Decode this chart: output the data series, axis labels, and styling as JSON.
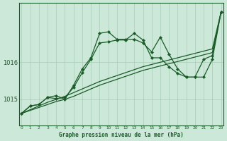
{
  "title": "Graphe pression niveau de la mer (hPa)",
  "background_color": "#cce8d8",
  "grid_color": "#a8ccb8",
  "line_color": "#1a5c28",
  "x_labels": [
    "0",
    "1",
    "2",
    "3",
    "4",
    "5",
    "6",
    "7",
    "8",
    "9",
    "10",
    "11",
    "12",
    "13",
    "14",
    "15",
    "16",
    "17",
    "18",
    "19",
    "20",
    "21",
    "22",
    "23"
  ],
  "y_ticks": [
    1015,
    1016
  ],
  "ylim": [
    1014.3,
    1017.6
  ],
  "xlim": [
    -0.3,
    23.3
  ],
  "trend1": [
    1014.62,
    1014.72,
    1014.82,
    1014.92,
    1015.0,
    1015.08,
    1015.18,
    1015.28,
    1015.38,
    1015.48,
    1015.56,
    1015.64,
    1015.72,
    1015.8,
    1015.88,
    1015.94,
    1016.0,
    1016.06,
    1016.12,
    1016.18,
    1016.24,
    1016.3,
    1016.36,
    1017.35
  ],
  "trend2": [
    1014.62,
    1014.7,
    1014.78,
    1014.86,
    1014.94,
    1015.0,
    1015.08,
    1015.18,
    1015.28,
    1015.38,
    1015.46,
    1015.54,
    1015.62,
    1015.7,
    1015.78,
    1015.84,
    1015.9,
    1015.96,
    1016.02,
    1016.08,
    1016.14,
    1016.2,
    1016.26,
    1017.35
  ],
  "jagged1": [
    1014.62,
    1014.82,
    1014.86,
    1015.05,
    1015.02,
    1015.05,
    1015.32,
    1015.72,
    1016.08,
    1016.52,
    1016.55,
    1016.6,
    1016.6,
    1016.78,
    1016.6,
    1016.12,
    1016.12,
    1015.88,
    1015.7,
    1015.6,
    1015.6,
    1016.08,
    1016.18,
    1017.35
  ],
  "jagged2": [
    1014.62,
    1014.82,
    1014.86,
    1015.05,
    1015.1,
    1015.0,
    1015.38,
    1015.82,
    1016.12,
    1016.78,
    1016.82,
    1016.62,
    1016.62,
    1016.62,
    1016.52,
    1016.28,
    1016.68,
    1016.22,
    1015.82,
    1015.6,
    1015.6,
    1015.6,
    1016.08,
    1017.35
  ]
}
